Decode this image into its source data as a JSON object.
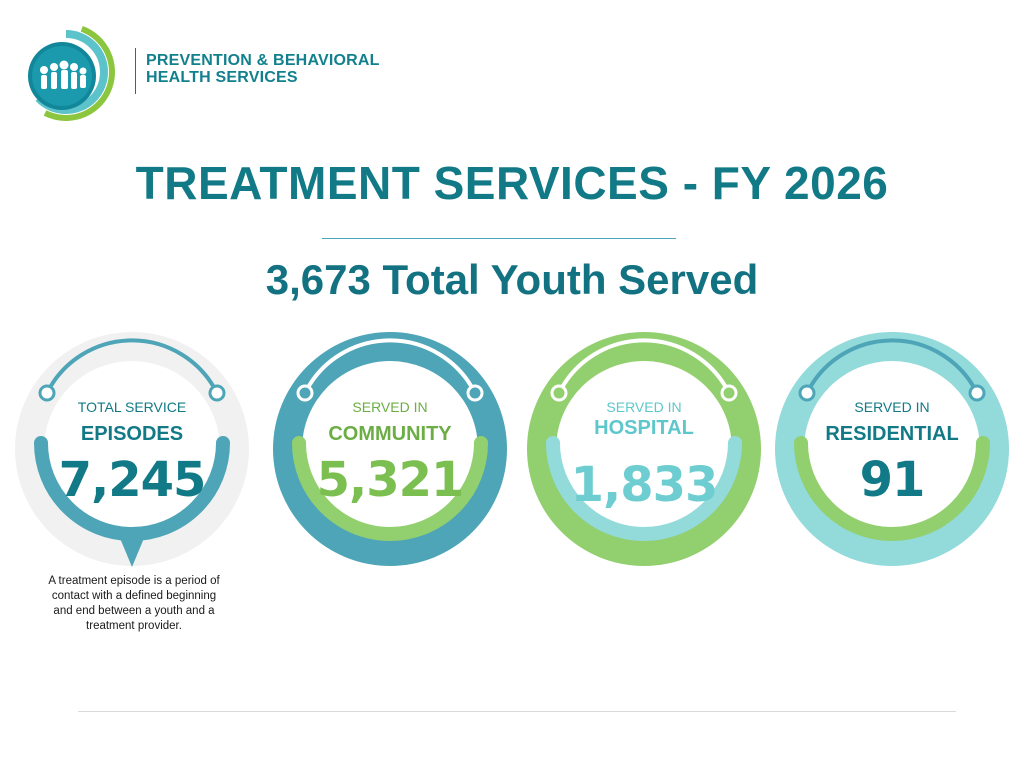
{
  "org": {
    "line1": "PREVENTION & BEHAVIORAL",
    "line2": "HEALTH SERVICES"
  },
  "title": "TREATMENT SERVICES - FY 2026",
  "total_line": "3,673 Total Youth Served",
  "colors": {
    "teal_dark": "#127a86",
    "teal": "#4ea5b7",
    "green": "#92cf6e",
    "light_blue": "#93dadb",
    "light_gray": "#f1f1f1"
  },
  "stats": {
    "episodes": {
      "line1": "TOTAL SERVICE",
      "line2": "EPISODES",
      "value": "7,245"
    },
    "community": {
      "line1": "SERVED IN",
      "line2": "COMMUNITY",
      "value": "5,321"
    },
    "hospital": {
      "line1": "SERVED IN",
      "line2": "HOSPITAL",
      "value": "1,833"
    },
    "residential": {
      "line1": "SERVED IN",
      "line2": "RESIDENTIAL",
      "value": "91"
    }
  },
  "footnote": "A treatment episode is a period of contact with a defined beginning and end between a youth and a treatment provider."
}
